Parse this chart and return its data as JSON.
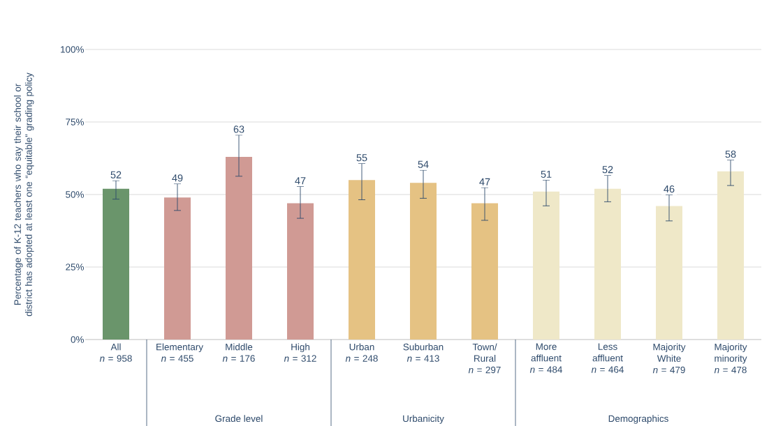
{
  "chart_data": {
    "type": "bar",
    "ylabel": "Percentage of K-12 teachers who say their school or district has adopted at least one “equitable” grading policy",
    "categories": [
      "All *n* = 958",
      "Elementary *n* = 455",
      "Middle *n* = 176",
      "High *n* = 312",
      "Urban *n* = 248",
      "Suburban *n* = 413",
      "Town/ Rural *n* = 297",
      "More affluent *n* = 484",
      "Less affluent *n* = 464",
      "Majority White *n* = 479",
      "Majority minority *n* = 478"
    ],
    "values": [
      52,
      49,
      63,
      47,
      55,
      54,
      47,
      51,
      52,
      46,
      58
    ],
    "colors": [
      "#6a956b",
      "#d09a94",
      "#d09a94",
      "#d09a94",
      "#e5c283",
      "#e5c283",
      "#e5c283",
      "#efe8c8",
      "#efe8c8",
      "#efe8c8",
      "#efe8c8"
    ],
    "errors": [
      [
        48.4,
        54.8
      ],
      [
        44.5,
        53.7
      ],
      [
        56.3,
        70.5
      ],
      [
        41.8,
        52.8
      ],
      [
        48.2,
        60.7
      ],
      [
        48.7,
        58.4
      ],
      [
        41.1,
        52.4
      ],
      [
        46.1,
        55.0
      ],
      [
        47.5,
        56.6
      ],
      [
        40.9,
        49.9
      ],
      [
        53.1,
        61.9
      ]
    ],
    "data_labels": true,
    "ylim": [
      0,
      100
    ],
    "yticks": [
      {
        "value": 0,
        "label": "0%"
      },
      {
        "value": 25,
        "label": "25%"
      },
      {
        "value": 50,
        "label": "50%"
      },
      {
        "value": 75,
        "label": "75%"
      },
      {
        "value": 100,
        "label": "100%"
      }
    ],
    "grid": "y",
    "annotations": [
      "Grade level",
      "Urbanicity",
      "Demographics"
    ]
  }
}
